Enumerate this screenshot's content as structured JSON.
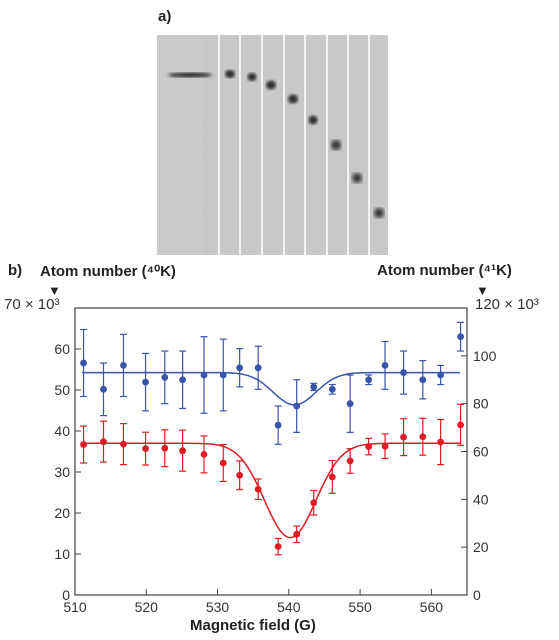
{
  "panel_a": {
    "label": "a)",
    "frame_count": 8,
    "image_description_colors": {
      "background": "#c9c9c9",
      "cloud": "#202020"
    }
  },
  "panel_b": {
    "label": "b)",
    "left_axis_title": "Atom number (⁴⁰K)",
    "right_axis_title": "Atom number (⁴¹K)",
    "marker_glyph": "▼",
    "left_ylim_label": "70 × 10³",
    "right_ylim_label": "120 × 10³"
  },
  "chart_data": {
    "type": "scatter",
    "xlabel": "Magnetic field (G)",
    "xlim": [
      510,
      565
    ],
    "xticks": [
      510,
      520,
      530,
      540,
      550,
      560
    ],
    "left_axis": {
      "ylim": [
        0,
        70
      ],
      "ticks": [
        0,
        10,
        20,
        30,
        40,
        50,
        60
      ]
    },
    "right_axis": {
      "ylim": [
        0,
        120
      ],
      "ticks": [
        0,
        20,
        40,
        60,
        80,
        100
      ]
    },
    "grid": false,
    "colors": {
      "blue": "#3a55a8",
      "red": "#e01b24"
    },
    "series": [
      {
        "axis": "right",
        "color": "blue",
        "x": [
          511.2,
          514.0,
          516.8,
          519.9,
          522.6,
          525.1,
          528.1,
          530.8,
          533.1,
          535.7,
          538.5,
          541.1,
          543.5,
          546.1,
          548.6,
          551.2,
          553.5,
          556.1,
          558.8,
          561.3,
          564.1
        ],
        "y": [
          97,
          86,
          96,
          89,
          91,
          90,
          92,
          92,
          95,
          95,
          71,
          79,
          87,
          86,
          80,
          90,
          96,
          93,
          90,
          92,
          108
        ],
        "err": [
          14,
          11,
          13,
          12,
          11,
          12,
          16,
          15,
          8,
          9,
          8,
          11,
          1.5,
          2,
          12,
          2,
          10,
          9,
          8,
          4,
          6
        ]
      },
      {
        "axis": "left",
        "color": "red",
        "x": [
          511.2,
          514.0,
          516.8,
          519.9,
          522.6,
          525.1,
          528.1,
          530.8,
          533.1,
          535.7,
          538.5,
          541.1,
          543.5,
          546.1,
          548.6,
          551.2,
          553.5,
          556.1,
          558.8,
          561.3,
          564.1
        ],
        "y": [
          36.7,
          37.4,
          36.8,
          35.7,
          35.8,
          35.2,
          34.3,
          32.2,
          29.2,
          25.8,
          11.8,
          14.8,
          22.5,
          28.8,
          32.7,
          36.2,
          36.3,
          38.5,
          38.6,
          37.3,
          41.5
        ],
        "err": [
          4.5,
          5,
          5,
          4,
          4.5,
          5,
          4.5,
          4.5,
          3.5,
          2.5,
          2,
          2,
          3,
          4,
          3,
          2,
          3,
          4.5,
          4.5,
          5.5,
          5
        ]
      }
    ],
    "fits": [
      {
        "axis": "right",
        "color": "blue",
        "model": "gaussian_dip",
        "baseline": 93,
        "depth": 13.5,
        "center": 540.8,
        "sigma": 3.0,
        "x_range": [
          511,
          564
        ]
      },
      {
        "axis": "left",
        "color": "red",
        "model": "gaussian_dip",
        "baseline": 37,
        "depth": 23,
        "center": 540.2,
        "sigma": 3.6,
        "x_range": [
          511,
          564
        ]
      }
    ]
  }
}
